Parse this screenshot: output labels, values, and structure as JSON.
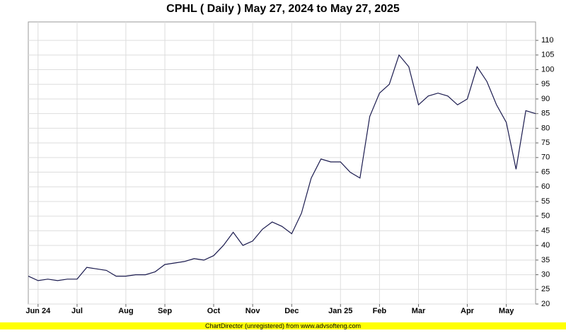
{
  "chart_data": {
    "type": "line",
    "title": "CPHL ( Daily ) May 27, 2024 to May 27, 2025",
    "footer": "ChartDirector (unregistered) from www.advsofteng.com",
    "categories": [
      null,
      "Jun 24",
      null,
      null,
      null,
      "Jul",
      null,
      null,
      null,
      null,
      "Aug",
      null,
      null,
      null,
      "Sep",
      null,
      null,
      null,
      null,
      "Oct",
      null,
      null,
      null,
      "Nov",
      null,
      null,
      null,
      "Dec",
      null,
      null,
      null,
      null,
      "Jan 25",
      null,
      null,
      null,
      "Feb",
      null,
      null,
      null,
      "Mar",
      null,
      null,
      null,
      null,
      "Apr",
      null,
      null,
      null,
      "May",
      null,
      null,
      null
    ],
    "series": [
      {
        "name": "CPHL",
        "color": "#1a1a4e",
        "values": [
          29.5,
          28,
          28.5,
          28,
          28.5,
          28.5,
          32.5,
          32,
          31.5,
          29.5,
          29.5,
          30,
          30,
          31,
          33.5,
          34,
          34.5,
          35.5,
          35,
          36.5,
          40,
          44.5,
          40,
          41.5,
          45.5,
          48,
          46.5,
          44,
          51,
          63,
          69.5,
          68.5,
          68.5,
          65,
          63,
          84,
          92,
          95,
          105,
          101,
          88,
          91,
          92,
          91,
          88,
          90,
          101,
          96,
          88,
          82,
          66,
          86,
          85
        ]
      }
    ],
    "ylim": [
      20,
      116.3
    ],
    "yticks": [
      20,
      25,
      30,
      35,
      40,
      45,
      50,
      55,
      60,
      65,
      70,
      75,
      80,
      85,
      90,
      95,
      100,
      105,
      110
    ],
    "grid": true,
    "y_axis_side": "right"
  }
}
